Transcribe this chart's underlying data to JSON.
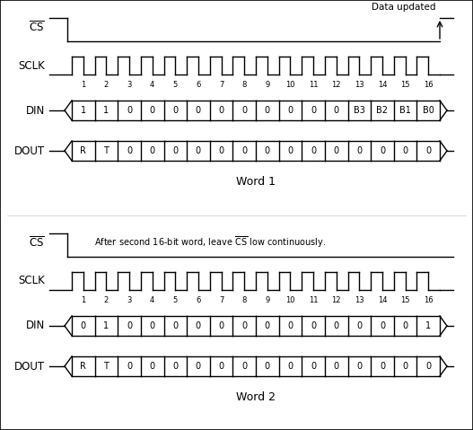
{
  "fig_bg": "#ffffff",
  "border_color": "#000000",
  "word1": {
    "word_label": "Word 1",
    "cs_annotation": "Data updated",
    "din_bits": [
      "1",
      "1",
      "0",
      "0",
      "0",
      "0",
      "0",
      "0",
      "0",
      "0",
      "0",
      "0",
      "B3",
      "B2",
      "B1",
      "B0"
    ],
    "dout_bits": [
      "R",
      "T",
      "0",
      "0",
      "0",
      "0",
      "0",
      "0",
      "0",
      "0",
      "0",
      "0",
      "0",
      "0",
      "0",
      "0"
    ],
    "clock_count": 16,
    "cs_rises_at_end": true
  },
  "word2": {
    "word_label": "Word 2",
    "cs_annotation": "After second 16-bit word, leave $\\overline{\\mathrm{CS}}$ low continuously.",
    "din_bits": [
      "0",
      "1",
      "0",
      "0",
      "0",
      "0",
      "0",
      "0",
      "0",
      "0",
      "0",
      "0",
      "0",
      "0",
      "0",
      "1"
    ],
    "dout_bits": [
      "R",
      "T",
      "0",
      "0",
      "0",
      "0",
      "0",
      "0",
      "0",
      "0",
      "0",
      "0",
      "0",
      "0",
      "0",
      "0"
    ],
    "clock_count": 16,
    "cs_rises_at_end": false
  }
}
